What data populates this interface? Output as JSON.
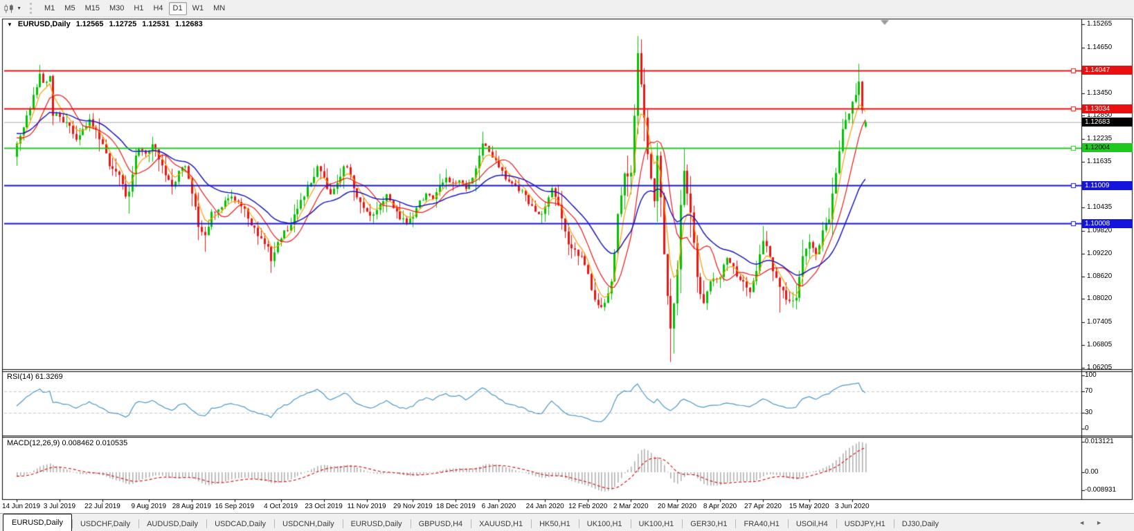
{
  "toolbar": {
    "periods": [
      "M1",
      "M5",
      "M15",
      "M30",
      "H1",
      "H4",
      "D1",
      "W1",
      "MN"
    ],
    "active_period": "D1"
  },
  "chart": {
    "title": {
      "symbol": "EURUSD,Daily",
      "open": "1.12565",
      "high": "1.12725",
      "low": "1.12531",
      "close": "1.12683"
    }
  },
  "price_axis": {
    "labels": [
      {
        "text": "1.15265",
        "value": 1.15265,
        "style": "tick"
      },
      {
        "text": "1.14650",
        "value": 1.1465,
        "style": "tick"
      },
      {
        "text": "1.14047",
        "value": 1.14047,
        "style": "badge",
        "bg": "#e81010",
        "fg": "#ffffff"
      },
      {
        "text": "1.13450",
        "value": 1.1345,
        "style": "tick"
      },
      {
        "text": "1.13034",
        "value": 1.13034,
        "style": "badge",
        "bg": "#e81010",
        "fg": "#ffffff"
      },
      {
        "text": "1.12850",
        "value": 1.1285,
        "style": "tick"
      },
      {
        "text": "1.12683",
        "value": 1.12683,
        "style": "badge",
        "bg": "#000000",
        "fg": "#ffffff"
      },
      {
        "text": "1.12235",
        "value": 1.12235,
        "style": "tick"
      },
      {
        "text": "1.12004",
        "value": 1.12004,
        "style": "badge",
        "bg": "#1ec81e",
        "fg": "#000000"
      },
      {
        "text": "1.11635",
        "value": 1.11635,
        "style": "tick"
      },
      {
        "text": "1.11009",
        "value": 1.11009,
        "style": "badge",
        "bg": "#1414dc",
        "fg": "#ffffff"
      },
      {
        "text": "1.10435",
        "value": 1.10435,
        "style": "tick"
      },
      {
        "text": "1.10008",
        "value": 1.10008,
        "style": "badge",
        "bg": "#1414dc",
        "fg": "#ffffff"
      },
      {
        "text": "1.09820",
        "value": 1.0982,
        "style": "tick"
      },
      {
        "text": "1.09220",
        "value": 1.0922,
        "style": "tick"
      },
      {
        "text": "1.08620",
        "value": 1.0862,
        "style": "tick"
      },
      {
        "text": "1.08020",
        "value": 1.0802,
        "style": "tick"
      },
      {
        "text": "1.07405",
        "value": 1.07405,
        "style": "tick"
      },
      {
        "text": "1.06805",
        "value": 1.06805,
        "style": "tick"
      },
      {
        "text": "1.06205",
        "value": 1.06205,
        "style": "tick"
      }
    ]
  },
  "panels": {
    "rsi": {
      "label": "RSI(14) 61.3269",
      "scale": [
        {
          "text": "100",
          "value": 100
        },
        {
          "text": "70",
          "value": 70
        },
        {
          "text": "30",
          "value": 30
        },
        {
          "text": "0",
          "value": 0
        }
      ],
      "levels": [
        70,
        30
      ],
      "line_color": "#4a98c8"
    },
    "macd": {
      "label": "MACD(12,26,9) 0.008462 0.010535",
      "scale": [
        {
          "text": "0.013121",
          "y": 633
        },
        {
          "text": "0.00",
          "y": 677
        },
        {
          "text": "-0.008931",
          "y": 703
        }
      ],
      "histogram_color": "#b2b2b2",
      "signal_color": "#dd1414"
    }
  },
  "tabs": {
    "items": [
      "EURUSD,Daily",
      "USDCHF,Daily",
      "AUDUSD,Daily",
      "USDCAD,Daily",
      "USDCNH,Daily",
      "EURUSD,Daily",
      "GBPUSD,H4",
      "XAUUSD,H1",
      "HK50,H1",
      "UK100,H1",
      "UK100,H1",
      "GER30,H1",
      "FRA40,H1",
      "USOil,H4",
      "USDJPY,H1",
      "DJ30,Daily"
    ],
    "active_index": 0,
    "scroll_left": "◄",
    "scroll_right": "►"
  },
  "chart_data": {
    "type": "candlestick",
    "symbol": "EURUSD",
    "timeframe": "Daily",
    "ylim": [
      1.0619,
      1.1543
    ],
    "last_candle": {
      "open": 1.12565,
      "high": 1.12725,
      "low": 1.12531,
      "close": 1.12683
    },
    "current_price": 1.12683,
    "candle_colors": {
      "up": "#00c400",
      "down": "#ee1414"
    },
    "overlays": [
      {
        "name": "ma-fast",
        "color": "#ff9c00"
      },
      {
        "name": "ma-mid",
        "color": "#ee1414"
      },
      {
        "name": "ma-slow",
        "color": "#1a1ac0"
      }
    ],
    "horizontal_lines": [
      {
        "price": 1.14047,
        "color": "#e81010"
      },
      {
        "price": 1.13034,
        "color": "#e81010"
      },
      {
        "price": 1.12004,
        "color": "#1ec81e"
      },
      {
        "price": 1.11009,
        "color": "#1414dc"
      },
      {
        "price": 1.10008,
        "color": "#1414dc"
      }
    ],
    "date_ticks": [
      {
        "label": "14 Jun 2019",
        "day": 0
      },
      {
        "label": "3 Jul 2019",
        "day": 13
      },
      {
        "label": "22 Jul 2019",
        "day": 26
      },
      {
        "label": "9 Aug 2019",
        "day": 40
      },
      {
        "label": "28 Aug 2019",
        "day": 53
      },
      {
        "label": "16 Sep 2019",
        "day": 66
      },
      {
        "label": "4 Oct 2019",
        "day": 80
      },
      {
        "label": "23 Oct 2019",
        "day": 93
      },
      {
        "label": "11 Nov 2019",
        "day": 106
      },
      {
        "label": "29 Nov 2019",
        "day": 120
      },
      {
        "label": "18 Dec 2019",
        "day": 133
      },
      {
        "label": "6 Jan 2020",
        "day": 146
      },
      {
        "label": "24 Jan 2020",
        "day": 160
      },
      {
        "label": "12 Feb 2020",
        "day": 173
      },
      {
        "label": "2 Mar 2020",
        "day": 186
      },
      {
        "label": "20 Mar 2020",
        "day": 200
      },
      {
        "label": "8 Apr 2020",
        "day": 213
      },
      {
        "label": "27 Apr 2020",
        "day": 226
      },
      {
        "label": "15 May 2020",
        "day": 240
      },
      {
        "label": "3 Jun 2020",
        "day": 253
      }
    ],
    "close_path_anchors": [
      [
        0,
        1.1212
      ],
      [
        3,
        1.1286
      ],
      [
        5,
        1.134
      ],
      [
        7,
        1.1396
      ],
      [
        8,
        1.1372
      ],
      [
        10,
        1.139
      ],
      [
        11,
        1.1285
      ],
      [
        13,
        1.1282
      ],
      [
        15,
        1.1268
      ],
      [
        18,
        1.1222
      ],
      [
        20,
        1.125
      ],
      [
        22,
        1.1276
      ],
      [
        24,
        1.1248
      ],
      [
        26,
        1.121
      ],
      [
        28,
        1.1152
      ],
      [
        30,
        1.1138
      ],
      [
        32,
        1.1105
      ],
      [
        33,
        1.1072
      ],
      [
        34,
        1.1085
      ],
      [
        36,
        1.118
      ],
      [
        37,
        1.12
      ],
      [
        39,
        1.1185
      ],
      [
        41,
        1.121
      ],
      [
        43,
        1.117
      ],
      [
        45,
        1.1128
      ],
      [
        47,
        1.1098
      ],
      [
        49,
        1.114
      ],
      [
        51,
        1.1152
      ],
      [
        53,
        1.108
      ],
      [
        55,
        1.0992
      ],
      [
        57,
        1.097
      ],
      [
        59,
        1.1032
      ],
      [
        61,
        1.1038
      ],
      [
        63,
        1.1062
      ],
      [
        65,
        1.1072
      ],
      [
        67,
        1.1058
      ],
      [
        69,
        1.104
      ],
      [
        70,
        1.1014
      ],
      [
        72,
        1.099
      ],
      [
        74,
        1.0962
      ],
      [
        76,
        1.094
      ],
      [
        77,
        1.0902
      ],
      [
        79,
        1.0952
      ],
      [
        81,
        1.0983
      ],
      [
        83,
        1.0998
      ],
      [
        85,
        1.104
      ],
      [
        87,
        1.1072
      ],
      [
        89,
        1.1108
      ],
      [
        91,
        1.1152
      ],
      [
        93,
        1.1122
      ],
      [
        95,
        1.1078
      ],
      [
        97,
        1.1108
      ],
      [
        99,
        1.1152
      ],
      [
        101,
        1.1128
      ],
      [
        103,
        1.107
      ],
      [
        105,
        1.1042
      ],
      [
        106,
        1.1032
      ],
      [
        108,
        1.1025
      ],
      [
        110,
        1.1052
      ],
      [
        112,
        1.1078
      ],
      [
        114,
        1.1042
      ],
      [
        116,
        1.1012
      ],
      [
        118,
        1.1002
      ],
      [
        120,
        1.1018
      ],
      [
        122,
        1.1062
      ],
      [
        124,
        1.108
      ],
      [
        126,
        1.1065
      ],
      [
        128,
        1.1102
      ],
      [
        130,
        1.1122
      ],
      [
        132,
        1.1108
      ],
      [
        134,
        1.1115
      ],
      [
        136,
        1.1092
      ],
      [
        138,
        1.1122
      ],
      [
        140,
        1.118
      ],
      [
        141,
        1.1212
      ],
      [
        143,
        1.119
      ],
      [
        145,
        1.1168
      ],
      [
        147,
        1.114
      ],
      [
        149,
        1.1112
      ],
      [
        151,
        1.1102
      ],
      [
        153,
        1.1088
      ],
      [
        155,
        1.1052
      ],
      [
        157,
        1.1032
      ],
      [
        159,
        1.1026
      ],
      [
        161,
        1.107
      ],
      [
        162,
        1.1094
      ],
      [
        164,
        1.105
      ],
      [
        166,
        1.098
      ],
      [
        167,
        1.0946
      ],
      [
        169,
        1.0932
      ],
      [
        171,
        1.0915
      ],
      [
        173,
        1.0868
      ],
      [
        175,
        1.08
      ],
      [
        176,
        1.0786
      ],
      [
        178,
        1.0792
      ],
      [
        180,
        1.0848
      ],
      [
        182,
        1.1026
      ],
      [
        184,
        1.1133
      ],
      [
        186,
        1.1135
      ],
      [
        187,
        1.1285
      ],
      [
        188,
        1.145
      ],
      [
        189,
        1.1368
      ],
      [
        190,
        1.128
      ],
      [
        191,
        1.1184
      ],
      [
        192,
        1.112
      ],
      [
        193,
        1.106
      ],
      [
        194,
        1.118
      ],
      [
        195,
        1.107
      ],
      [
        196,
        1.092
      ],
      [
        197,
        1.081
      ],
      [
        198,
        1.0724
      ],
      [
        199,
        1.079
      ],
      [
        200,
        1.088
      ],
      [
        201,
        1.105
      ],
      [
        202,
        1.114
      ],
      [
        203,
        1.108
      ],
      [
        204,
        1.103
      ],
      [
        205,
        1.095
      ],
      [
        206,
        1.086
      ],
      [
        207,
        1.0815
      ],
      [
        208,
        1.0791
      ],
      [
        209,
        1.0822
      ],
      [
        211,
        1.0856
      ],
      [
        213,
        1.086
      ],
      [
        215,
        1.091
      ],
      [
        217,
        1.0888
      ],
      [
        219,
        1.0852
      ],
      [
        221,
        1.0832
      ],
      [
        222,
        1.082
      ],
      [
        224,
        1.0876
      ],
      [
        226,
        1.0955
      ],
      [
        228,
        1.0912
      ],
      [
        230,
        1.0858
      ],
      [
        231,
        1.0834
      ],
      [
        233,
        1.08
      ],
      [
        235,
        1.0798
      ],
      [
        236,
        1.0805
      ],
      [
        238,
        1.0915
      ],
      [
        240,
        1.0952
      ],
      [
        242,
        1.092
      ],
      [
        244,
        1.0983
      ],
      [
        246,
        1.1012
      ],
      [
        248,
        1.1134
      ],
      [
        250,
        1.125
      ],
      [
        252,
        1.1291
      ],
      [
        253,
        1.1322
      ],
      [
        254,
        1.134
      ],
      [
        255,
        1.1375
      ],
      [
        256,
        1.13
      ],
      [
        257,
        1.12683
      ]
    ],
    "wick_extremes": {
      "highs": [
        [
          7,
          1.1412
        ],
        [
          188,
          1.1495
        ],
        [
          255,
          1.1422
        ]
      ],
      "lows": [
        [
          34,
          1.1027
        ],
        [
          57,
          1.0926
        ],
        [
          77,
          1.0879
        ],
        [
          176,
          1.0778
        ],
        [
          198,
          1.0636
        ],
        [
          231,
          1.0766
        ]
      ]
    }
  }
}
